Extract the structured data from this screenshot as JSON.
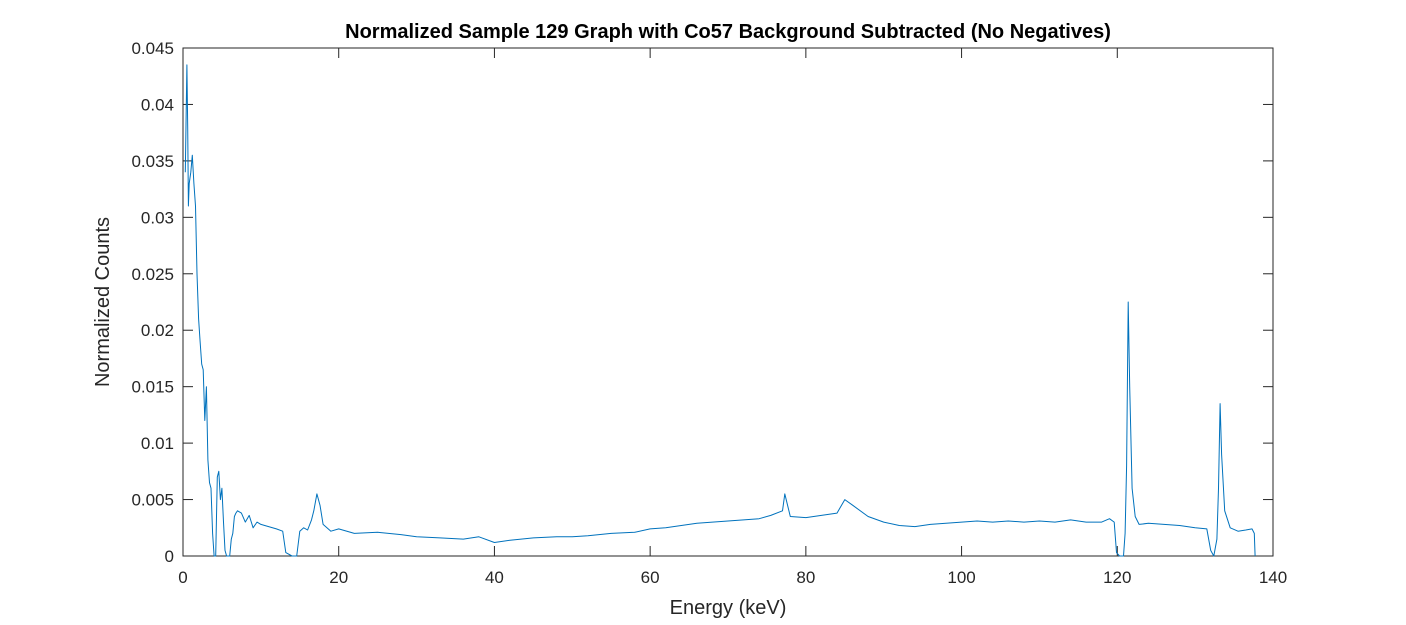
{
  "chart_data": {
    "type": "line",
    "title": "Normalized Sample 129 Graph with Co57 Background Subtracted (No Negatives)",
    "xlabel": "Energy (keV)",
    "ylabel": "Normalized Counts",
    "xlim": [
      0,
      140
    ],
    "ylim": [
      0,
      0.045
    ],
    "xticks": [
      0,
      20,
      40,
      60,
      80,
      100,
      120,
      140
    ],
    "xtick_labels": [
      "0",
      "20",
      "40",
      "60",
      "80",
      "100",
      "120",
      "140"
    ],
    "yticks": [
      0,
      0.005,
      0.01,
      0.015,
      0.02,
      0.025,
      0.03,
      0.035,
      0.04,
      0.045
    ],
    "ytick_labels": [
      "0",
      "0.005",
      "0.01",
      "0.015",
      "0.02",
      "0.025",
      "0.03",
      "0.035",
      "0.04",
      "0.045"
    ],
    "grid": false,
    "series_color": "#0072BD",
    "series": [
      {
        "x": [
          0.3,
          0.5,
          0.6,
          0.7,
          0.8,
          1.0,
          1.2,
          1.4,
          1.6,
          1.8,
          2.0,
          2.2,
          2.4,
          2.6,
          2.8,
          3.0,
          3.2,
          3.4,
          3.6,
          3.8,
          4.0,
          4.2,
          4.4,
          4.6,
          4.8,
          5.0,
          5.2,
          5.4,
          5.6,
          5.8,
          6.0,
          6.2,
          6.4,
          6.6,
          6.8,
          7.0,
          7.5,
          8.0,
          8.5,
          9.0,
          9.5,
          10.0,
          11.0,
          12.0,
          12.8,
          13.2,
          14.0,
          14.6,
          15.0,
          15.5,
          16.0,
          16.5,
          16.8,
          17.2,
          17.6,
          18.0,
          19.0,
          20.0,
          22.0,
          25.0,
          28.0,
          30.0,
          33.0,
          36.0,
          38.0,
          40.0,
          42.0,
          45.0,
          48.0,
          50.0,
          52.0,
          55.0,
          58.0,
          60.0,
          62.0,
          64.0,
          66.0,
          68.0,
          70.0,
          72.0,
          74.0,
          75.5,
          77.0,
          77.3,
          78.0,
          80.0,
          82.0,
          84.0,
          85.0,
          86.0,
          88.0,
          90.0,
          92.0,
          94.0,
          96.0,
          98.0,
          100.0,
          102.0,
          104.0,
          106.0,
          108.0,
          110.0,
          112.0,
          114.0,
          116.0,
          118.0,
          119.0,
          119.6,
          119.9,
          120.3,
          120.8,
          121.0,
          121.2,
          121.4,
          121.6,
          121.9,
          122.3,
          122.8,
          124.0,
          126.0,
          128.0,
          130.0,
          131.5,
          132.0,
          132.4,
          132.8,
          133.0,
          133.2,
          133.4,
          133.8,
          134.5,
          135.5,
          136.5,
          137.3,
          137.6,
          137.7
        ],
        "y": [
          0.034,
          0.0435,
          0.038,
          0.031,
          0.033,
          0.034,
          0.0355,
          0.033,
          0.031,
          0.025,
          0.021,
          0.019,
          0.017,
          0.0165,
          0.012,
          0.015,
          0.0085,
          0.0065,
          0.006,
          0.002,
          0.0,
          0.0,
          0.007,
          0.0075,
          0.005,
          0.006,
          0.003,
          0.0005,
          0.0,
          0.0,
          0.0,
          0.0015,
          0.002,
          0.0035,
          0.0038,
          0.004,
          0.0038,
          0.003,
          0.0036,
          0.0025,
          0.003,
          0.0028,
          0.0026,
          0.0024,
          0.0022,
          0.0003,
          0.0,
          0.0,
          0.0022,
          0.0025,
          0.0023,
          0.0032,
          0.004,
          0.0055,
          0.0045,
          0.0028,
          0.0022,
          0.0024,
          0.002,
          0.0021,
          0.0019,
          0.0017,
          0.0016,
          0.0015,
          0.0017,
          0.0012,
          0.0014,
          0.0016,
          0.0017,
          0.0017,
          0.0018,
          0.002,
          0.0021,
          0.0024,
          0.0025,
          0.0027,
          0.0029,
          0.003,
          0.0031,
          0.0032,
          0.0033,
          0.0036,
          0.004,
          0.0055,
          0.0035,
          0.0034,
          0.0036,
          0.0038,
          0.005,
          0.0045,
          0.0035,
          0.003,
          0.0027,
          0.0026,
          0.0028,
          0.0029,
          0.003,
          0.0031,
          0.003,
          0.0031,
          0.003,
          0.0031,
          0.003,
          0.0032,
          0.003,
          0.003,
          0.0033,
          0.003,
          0.0003,
          0.0,
          0.0,
          0.002,
          0.008,
          0.0225,
          0.015,
          0.006,
          0.0035,
          0.0028,
          0.0029,
          0.0028,
          0.0027,
          0.0025,
          0.0024,
          0.0005,
          0.0,
          0.0015,
          0.006,
          0.0135,
          0.009,
          0.004,
          0.0025,
          0.0022,
          0.0023,
          0.0024,
          0.002,
          0.0
        ]
      }
    ]
  }
}
